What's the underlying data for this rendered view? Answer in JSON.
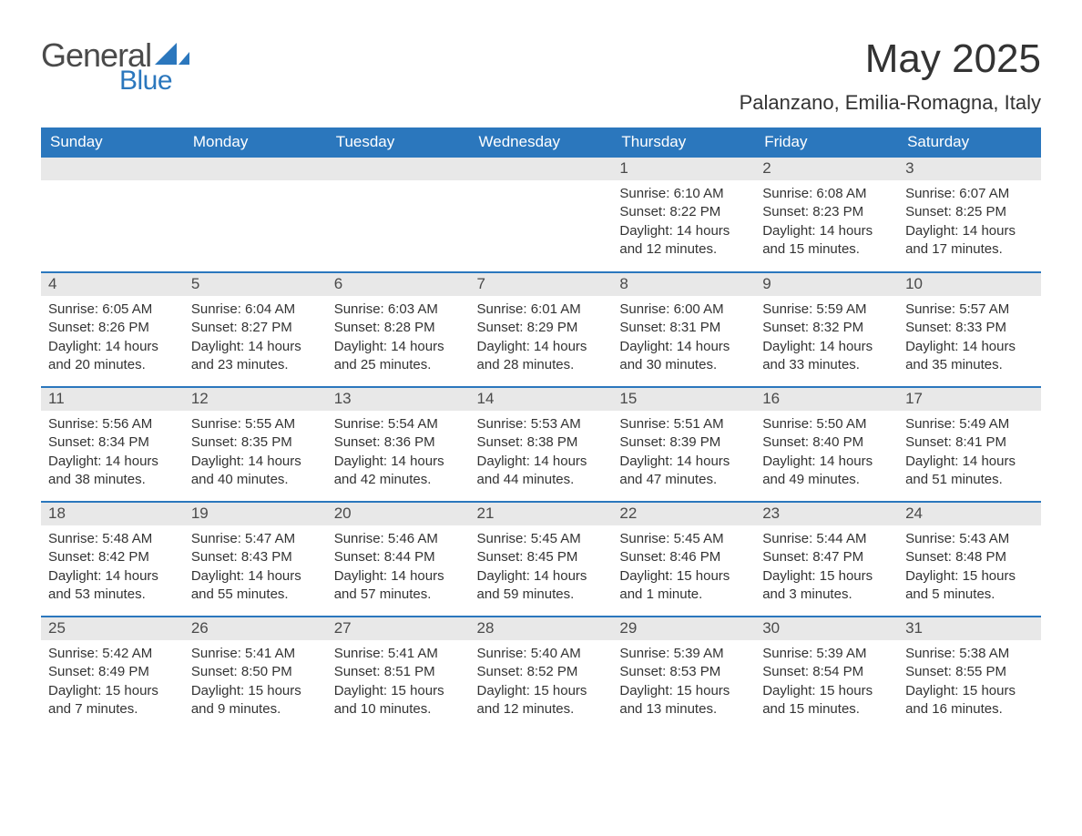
{
  "brand": {
    "word1": "General",
    "word2": "Blue",
    "logo_color": "#2b77bd",
    "text_color_dark": "#4a4a4a"
  },
  "header": {
    "title": "May 2025",
    "location": "Palanzano, Emilia-Romagna, Italy"
  },
  "style": {
    "header_bg": "#2b77bd",
    "header_text": "#ffffff",
    "daynum_bg": "#e8e8e8",
    "body_text": "#333333",
    "row_divider": "#2b77bd",
    "page_bg": "#ffffff",
    "title_fontsize": 44,
    "location_fontsize": 22,
    "weekday_fontsize": 17,
    "daynum_fontsize": 17,
    "content_fontsize": 15
  },
  "weekdays": [
    "Sunday",
    "Monday",
    "Tuesday",
    "Wednesday",
    "Thursday",
    "Friday",
    "Saturday"
  ],
  "weeks": [
    [
      null,
      null,
      null,
      null,
      {
        "n": "1",
        "sunrise": "6:10 AM",
        "sunset": "8:22 PM",
        "daylight": "14 hours and 12 minutes."
      },
      {
        "n": "2",
        "sunrise": "6:08 AM",
        "sunset": "8:23 PM",
        "daylight": "14 hours and 15 minutes."
      },
      {
        "n": "3",
        "sunrise": "6:07 AM",
        "sunset": "8:25 PM",
        "daylight": "14 hours and 17 minutes."
      }
    ],
    [
      {
        "n": "4",
        "sunrise": "6:05 AM",
        "sunset": "8:26 PM",
        "daylight": "14 hours and 20 minutes."
      },
      {
        "n": "5",
        "sunrise": "6:04 AM",
        "sunset": "8:27 PM",
        "daylight": "14 hours and 23 minutes."
      },
      {
        "n": "6",
        "sunrise": "6:03 AM",
        "sunset": "8:28 PM",
        "daylight": "14 hours and 25 minutes."
      },
      {
        "n": "7",
        "sunrise": "6:01 AM",
        "sunset": "8:29 PM",
        "daylight": "14 hours and 28 minutes."
      },
      {
        "n": "8",
        "sunrise": "6:00 AM",
        "sunset": "8:31 PM",
        "daylight": "14 hours and 30 minutes."
      },
      {
        "n": "9",
        "sunrise": "5:59 AM",
        "sunset": "8:32 PM",
        "daylight": "14 hours and 33 minutes."
      },
      {
        "n": "10",
        "sunrise": "5:57 AM",
        "sunset": "8:33 PM",
        "daylight": "14 hours and 35 minutes."
      }
    ],
    [
      {
        "n": "11",
        "sunrise": "5:56 AM",
        "sunset": "8:34 PM",
        "daylight": "14 hours and 38 minutes."
      },
      {
        "n": "12",
        "sunrise": "5:55 AM",
        "sunset": "8:35 PM",
        "daylight": "14 hours and 40 minutes."
      },
      {
        "n": "13",
        "sunrise": "5:54 AM",
        "sunset": "8:36 PM",
        "daylight": "14 hours and 42 minutes."
      },
      {
        "n": "14",
        "sunrise": "5:53 AM",
        "sunset": "8:38 PM",
        "daylight": "14 hours and 44 minutes."
      },
      {
        "n": "15",
        "sunrise": "5:51 AM",
        "sunset": "8:39 PM",
        "daylight": "14 hours and 47 minutes."
      },
      {
        "n": "16",
        "sunrise": "5:50 AM",
        "sunset": "8:40 PM",
        "daylight": "14 hours and 49 minutes."
      },
      {
        "n": "17",
        "sunrise": "5:49 AM",
        "sunset": "8:41 PM",
        "daylight": "14 hours and 51 minutes."
      }
    ],
    [
      {
        "n": "18",
        "sunrise": "5:48 AM",
        "sunset": "8:42 PM",
        "daylight": "14 hours and 53 minutes."
      },
      {
        "n": "19",
        "sunrise": "5:47 AM",
        "sunset": "8:43 PM",
        "daylight": "14 hours and 55 minutes."
      },
      {
        "n": "20",
        "sunrise": "5:46 AM",
        "sunset": "8:44 PM",
        "daylight": "14 hours and 57 minutes."
      },
      {
        "n": "21",
        "sunrise": "5:45 AM",
        "sunset": "8:45 PM",
        "daylight": "14 hours and 59 minutes."
      },
      {
        "n": "22",
        "sunrise": "5:45 AM",
        "sunset": "8:46 PM",
        "daylight": "15 hours and 1 minute."
      },
      {
        "n": "23",
        "sunrise": "5:44 AM",
        "sunset": "8:47 PM",
        "daylight": "15 hours and 3 minutes."
      },
      {
        "n": "24",
        "sunrise": "5:43 AM",
        "sunset": "8:48 PM",
        "daylight": "15 hours and 5 minutes."
      }
    ],
    [
      {
        "n": "25",
        "sunrise": "5:42 AM",
        "sunset": "8:49 PM",
        "daylight": "15 hours and 7 minutes."
      },
      {
        "n": "26",
        "sunrise": "5:41 AM",
        "sunset": "8:50 PM",
        "daylight": "15 hours and 9 minutes."
      },
      {
        "n": "27",
        "sunrise": "5:41 AM",
        "sunset": "8:51 PM",
        "daylight": "15 hours and 10 minutes."
      },
      {
        "n": "28",
        "sunrise": "5:40 AM",
        "sunset": "8:52 PM",
        "daylight": "15 hours and 12 minutes."
      },
      {
        "n": "29",
        "sunrise": "5:39 AM",
        "sunset": "8:53 PM",
        "daylight": "15 hours and 13 minutes."
      },
      {
        "n": "30",
        "sunrise": "5:39 AM",
        "sunset": "8:54 PM",
        "daylight": "15 hours and 15 minutes."
      },
      {
        "n": "31",
        "sunrise": "5:38 AM",
        "sunset": "8:55 PM",
        "daylight": "15 hours and 16 minutes."
      }
    ]
  ],
  "labels": {
    "sunrise": "Sunrise: ",
    "sunset": "Sunset: ",
    "daylight": "Daylight: "
  }
}
